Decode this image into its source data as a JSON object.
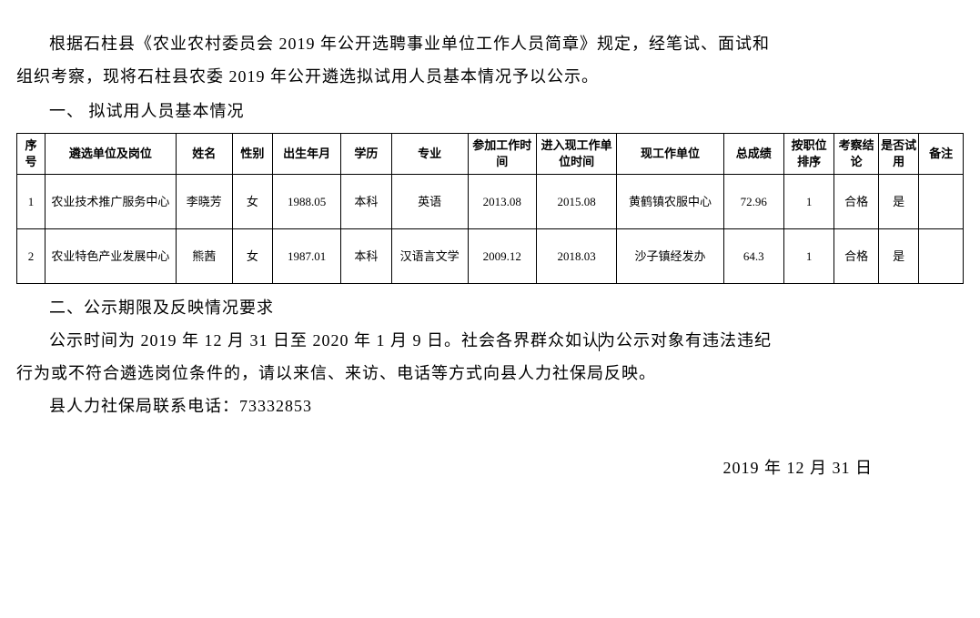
{
  "paragraphs": {
    "intro_1": "根据石柱县《农业农村委员会 2019 年公开选聘事业单位工作人员简章》规定，经笔试、面试和",
    "intro_2_noindent": "组织考察，现将石柱县农委 2019 年公开遴选拟试用人员基本情况予以公示。",
    "heading_1": "一、 拟试用人员基本情况",
    "heading_2": "二、公示期限及反映情况要求",
    "period_1a": "公示时间为 2019 年 12 月 31 日至 2020 年 1 月 9 日。社会各界群众如认",
    "period_1b": "为公示对象有违法违纪",
    "period_2_noindent": "行为或不符合遴选岗位条件的，请以来信、来访、电话等方式向县人力社保局反映。",
    "contact": "县人力社保局联系电话：73332853"
  },
  "date": "2019 年 12 月 31 日",
  "table": {
    "columns": [
      {
        "label": "序号",
        "width": 28
      },
      {
        "label": "遴选单位及岗位",
        "width": 130
      },
      {
        "label": "姓名",
        "width": 56
      },
      {
        "label": "性别",
        "width": 40
      },
      {
        "label": "出生年月",
        "width": 68
      },
      {
        "label": "学历",
        "width": 50
      },
      {
        "label": "专业",
        "width": 76
      },
      {
        "label": "参加工作时间",
        "width": 68
      },
      {
        "label": "进入现工作单位时间",
        "width": 80
      },
      {
        "label": "现工作单位",
        "width": 106
      },
      {
        "label": "总成绩",
        "width": 60
      },
      {
        "label": "按职位排序",
        "width": 50
      },
      {
        "label": "考察结论",
        "width": 44
      },
      {
        "label": "是否试用",
        "width": 40
      },
      {
        "label": "备注",
        "width": 44
      }
    ],
    "rows": [
      [
        "1",
        "农业技术推广服务中心",
        "李晓芳",
        "女",
        "1988.05",
        "本科",
        "英语",
        "2013.08",
        "2015.08",
        "黄鹤镇农服中心",
        "72.96",
        "1",
        "合格",
        "是",
        ""
      ],
      [
        "2",
        "农业特色产业发展中心",
        "熊茜",
        "女",
        "1987.01",
        "本科",
        "汉语言文学",
        "2009.12",
        "2018.03",
        "沙子镇经发办",
        "64.3",
        "1",
        "合格",
        "是",
        ""
      ]
    ]
  },
  "styling": {
    "body_fontsize": 18,
    "table_fontsize": 13,
    "text_color": "#000000",
    "background_color": "#ffffff",
    "border_color": "#000000",
    "line_height": 2
  }
}
